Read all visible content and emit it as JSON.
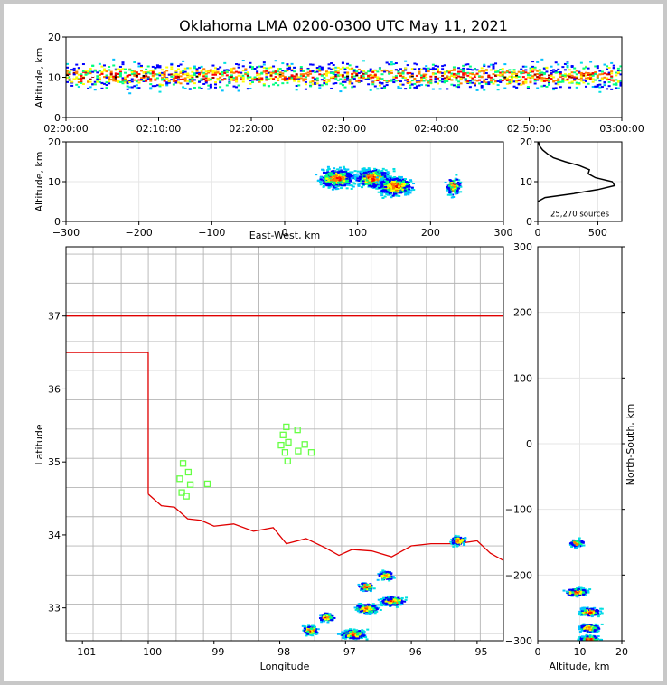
{
  "title": "Oklahoma LMA 0200-0300 UTC May 11, 2021",
  "colors": {
    "frame": "#c8c8c8",
    "state_border": "#e00000",
    "county": "#b4b4b4",
    "station": "#66ff44",
    "density": [
      "#00e0e0",
      "#0000ff",
      "#00c0ff",
      "#00ff80",
      "#ffff00",
      "#ff8000",
      "#ff0000",
      "#a00000",
      "#ffffff",
      "#000000"
    ]
  },
  "chart_data": [
    {
      "id": "time-altitude",
      "type": "heatmap",
      "xlabel": "",
      "ylabel": "Altitude, km",
      "x_ticks": [
        "02:00:00",
        "02:10:00",
        "02:20:00",
        "02:30:00",
        "02:40:00",
        "02:50:00",
        "03:00:00"
      ],
      "xlim_minutes": [
        0,
        60
      ],
      "ylim": [
        0,
        20
      ],
      "y_ticks": [
        0,
        10,
        20
      ],
      "density_band_km": [
        5,
        20
      ],
      "core_km": [
        8,
        13
      ]
    },
    {
      "id": "east-west-altitude",
      "type": "heatmap",
      "xlabel": "East-West, km",
      "ylabel": "Altitude, km",
      "xlim": [
        -300,
        300
      ],
      "x_ticks": [
        -300,
        -200,
        -100,
        0,
        100,
        200,
        300
      ],
      "ylim": [
        0,
        20
      ],
      "y_ticks": [
        0,
        10,
        20
      ],
      "clusters": [
        {
          "x": 70,
          "z": 11
        },
        {
          "x": 120,
          "z": 11
        },
        {
          "x": 150,
          "z": 9
        },
        {
          "x": 230,
          "z": 9
        }
      ]
    },
    {
      "id": "altitude-histogram",
      "type": "line",
      "xlim": [
        0,
        700
      ],
      "x_ticks": [
        0,
        500
      ],
      "ylim": [
        0,
        20
      ],
      "y_ticks": [
        0,
        10,
        20
      ],
      "annotation": "25,270 sources",
      "profile": [
        [
          5,
          0
        ],
        [
          6,
          60
        ],
        [
          7,
          300
        ],
        [
          8,
          500
        ],
        [
          9,
          640
        ],
        [
          10,
          620
        ],
        [
          11,
          480
        ],
        [
          12,
          420
        ],
        [
          13,
          430
        ],
        [
          14,
          350
        ],
        [
          15,
          230
        ],
        [
          16,
          130
        ],
        [
          17,
          80
        ],
        [
          18,
          40
        ],
        [
          19,
          15
        ],
        [
          20,
          5
        ]
      ]
    },
    {
      "id": "plan-view",
      "type": "heatmap",
      "xlabel": "Longitude",
      "ylabel": "Latitude",
      "xlim": [
        -101.25,
        -94.6
      ],
      "x_ticks": [
        -101,
        -100,
        -99,
        -98,
        -97,
        -96,
        -95
      ],
      "ylim": [
        32.55,
        37.95
      ],
      "y_ticks": [
        33,
        34,
        35,
        36,
        37
      ],
      "stations": [
        [
          -97.9,
          35.48
        ],
        [
          -97.73,
          35.44
        ],
        [
          -97.95,
          35.37
        ],
        [
          -97.87,
          35.27
        ],
        [
          -97.98,
          35.23
        ],
        [
          -97.62,
          35.24
        ],
        [
          -97.92,
          35.13
        ],
        [
          -97.72,
          35.15
        ],
        [
          -97.52,
          35.13
        ],
        [
          -97.88,
          35.01
        ],
        [
          -99.47,
          34.98
        ],
        [
          -99.39,
          34.86
        ],
        [
          -99.52,
          34.77
        ],
        [
          -99.36,
          34.69
        ],
        [
          -99.1,
          34.7
        ],
        [
          -99.49,
          34.58
        ],
        [
          -99.42,
          34.53
        ]
      ],
      "clusters": [
        {
          "lon": -96.3,
          "lat": 33.1
        },
        {
          "lon": -96.7,
          "lat": 33.0
        },
        {
          "lon": -96.9,
          "lat": 32.65
        },
        {
          "lon": -96.4,
          "lat": 33.45
        },
        {
          "lon": -96.7,
          "lat": 33.3
        },
        {
          "lon": -97.3,
          "lat": 32.88
        },
        {
          "lon": -97.55,
          "lat": 32.7
        },
        {
          "lon": -95.3,
          "lat": 33.93
        }
      ]
    },
    {
      "id": "altitude-north-south",
      "type": "heatmap",
      "xlabel": "Altitude, km",
      "ylabel": "North-South, km",
      "xlim": [
        0,
        20
      ],
      "x_ticks": [
        0,
        10,
        20
      ],
      "ylim": [
        -300,
        300
      ],
      "y_ticks": [
        -300,
        -200,
        -100,
        0,
        100,
        200,
        300
      ],
      "clusters": [
        {
          "z": 9,
          "y": -150
        },
        {
          "z": 9,
          "y": -225
        },
        {
          "z": 12,
          "y": -255
        },
        {
          "z": 12,
          "y": -280
        },
        {
          "z": 12,
          "y": -297
        }
      ]
    }
  ]
}
